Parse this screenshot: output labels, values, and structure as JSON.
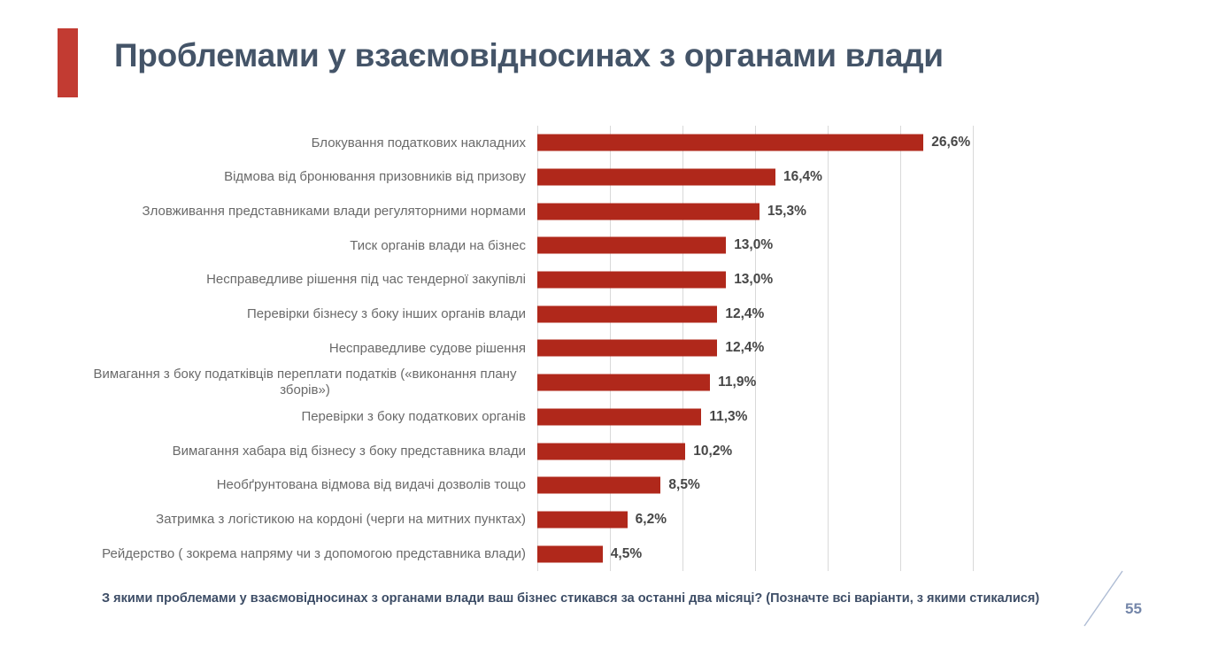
{
  "slide": {
    "title": "Проблемами у взаємовідносинах з органами влади",
    "footer_question": "З якими проблемами у взаємовідносинах з органами влади ваш бізнес стикався за останні два місяці? (Позначте всі варіанти, з якими стикалися)",
    "page_number": "55",
    "colors": {
      "bar": "#b0281b",
      "accent": "#c23b32",
      "title": "#445468",
      "label": "#6a6a6a",
      "value": "#474747",
      "grid": "#d9d9d9",
      "footer": "#3d4d66",
      "page": "#7486a9",
      "slash": "#aebcd4"
    }
  },
  "chart_data": {
    "type": "bar",
    "orientation": "horizontal",
    "title": "",
    "xlabel": "",
    "ylabel": "",
    "legend": false,
    "grid": true,
    "xlim": [
      0,
      30
    ],
    "axis_ticks": [
      0,
      5,
      10,
      15,
      20,
      25,
      30
    ],
    "categories": [
      "Блокування податкових накладних",
      "Відмова від бронювання призовників від призову",
      "Зловживання представниками влади регуляторними нормами",
      "Тиск органів влади на бізнес",
      "Несправедливе рішення під час тендерної закупівлі",
      "Перевірки бізнесу з боку інших органів влади",
      "Несправедливе судове рішення",
      "Вимагання з боку податківців переплати податків («виконання плану зборів»)",
      "Перевірки з боку податкових органів",
      "Вимагання хабара від бізнесу з боку представника влади",
      "Необґрунтована відмова від видачі дозволів тощо",
      "Затримка з логістикою на кордоні (черги на митних пунктах)",
      "Рейдерство ( зокрема напряму чи з допомогою представника влади)"
    ],
    "values": [
      26.6,
      16.4,
      15.3,
      13.0,
      13.0,
      12.4,
      12.4,
      11.9,
      11.3,
      10.2,
      8.5,
      6.2,
      4.5
    ],
    "value_labels": [
      "26,6%",
      "16,4%",
      "15,3%",
      "13,0%",
      "13,0%",
      "12,4%",
      "12,4%",
      "11,9%",
      "11,3%",
      "10,2%",
      "8,5%",
      "6,2%",
      "4,5%"
    ]
  }
}
